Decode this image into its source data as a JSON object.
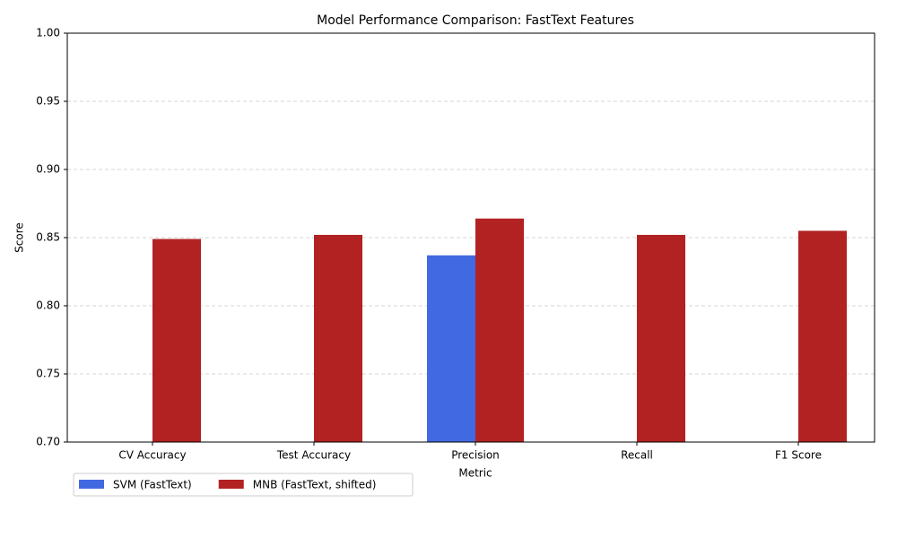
{
  "chart_data": {
    "type": "bar",
    "title": "Model Performance Comparison: FastText Features",
    "xlabel": "Metric",
    "ylabel": "Score",
    "categories": [
      "CV Accuracy",
      "Test Accuracy",
      "Precision",
      "Recall",
      "F1 Score"
    ],
    "series": [
      {
        "name": "SVM (FastText)",
        "color": "#4169e1",
        "values": [
          null,
          null,
          0.837,
          null,
          null
        ]
      },
      {
        "name": "MNB (FastText, shifted)",
        "color": "#b22222",
        "values": [
          0.849,
          0.852,
          0.864,
          0.852,
          0.855
        ]
      }
    ],
    "ylim": [
      0.7,
      1.0
    ],
    "yticks": [
      {
        "value": 0.7,
        "label": "0.70"
      },
      {
        "value": 0.75,
        "label": "0.75"
      },
      {
        "value": 0.8,
        "label": "0.80"
      },
      {
        "value": 0.85,
        "label": "0.85"
      },
      {
        "value": 0.9,
        "label": "0.90"
      },
      {
        "value": 0.95,
        "label": "0.95"
      },
      {
        "value": 1.0,
        "label": "1.00"
      }
    ],
    "grid": true,
    "legend": "lower left"
  }
}
